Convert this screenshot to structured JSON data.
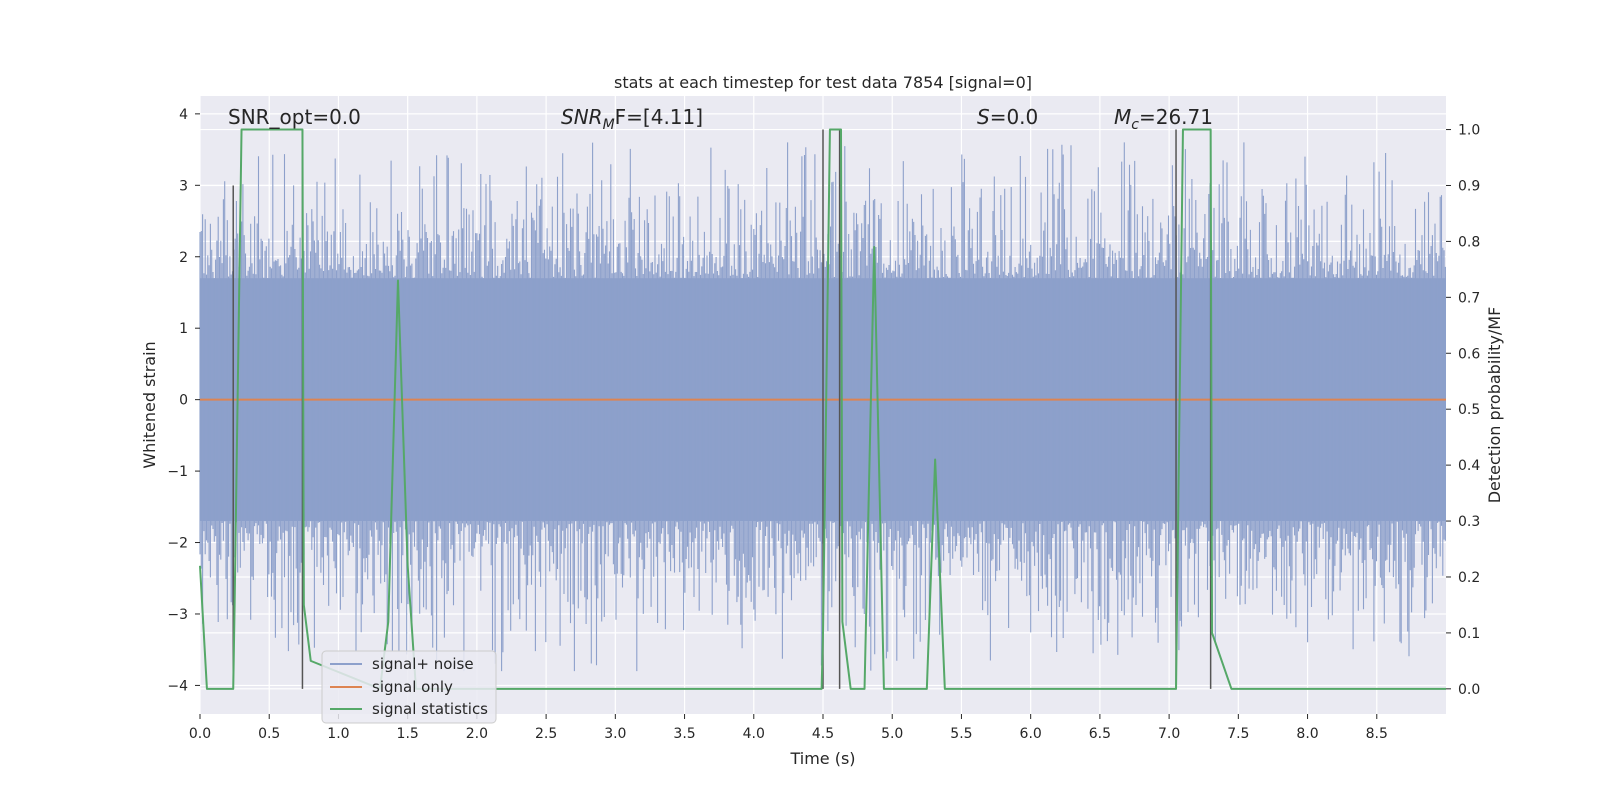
{
  "chart_data": {
    "type": "line",
    "title": "stats at each timestep for test data 7854 [signal=0]",
    "xlabel": "Time (s)",
    "ylabel": "Whitened strain",
    "y2label": "Detection probability/MF",
    "xlim": [
      0.0,
      9.0
    ],
    "ylim": [
      -4.4,
      4.25
    ],
    "y2lim": [
      -0.045,
      1.06
    ],
    "xticks": [
      "0.0",
      "0.5",
      "1.0",
      "1.5",
      "2.0",
      "2.5",
      "3.0",
      "3.5",
      "4.0",
      "4.5",
      "5.0",
      "5.5",
      "6.0",
      "6.5",
      "7.0",
      "7.5",
      "8.0",
      "8.5"
    ],
    "xtick_values": [
      0,
      0.5,
      1,
      1.5,
      2,
      2.5,
      3,
      3.5,
      4,
      4.5,
      5,
      5.5,
      6,
      6.5,
      7,
      7.5,
      8,
      8.5
    ],
    "yticks": [
      "−4",
      "−3",
      "−2",
      "−1",
      "0",
      "1",
      "2",
      "3",
      "4"
    ],
    "ytick_values": [
      -4,
      -3,
      -2,
      -1,
      0,
      1,
      2,
      3,
      4
    ],
    "y2ticks": [
      "0.0",
      "0.1",
      "0.2",
      "0.3",
      "0.4",
      "0.5",
      "0.6",
      "0.7",
      "0.8",
      "0.9",
      "1.0"
    ],
    "y2tick_values": [
      0,
      0.1,
      0.2,
      0.3,
      0.4,
      0.5,
      0.6,
      0.7,
      0.8,
      0.9,
      1.0
    ],
    "grid": true,
    "legend_position": "lower-left",
    "annotations": [
      {
        "id": "snr-opt",
        "text": "SNR_opt=0.0",
        "x": 0.2,
        "y": 4.0
      },
      {
        "id": "snr-mf",
        "base": "SNR",
        "sub": "M",
        "suffix": "F=[4.11]",
        "x": 2.6,
        "y": 4.0
      },
      {
        "id": "s",
        "base": "S",
        "sub": "",
        "suffix": "=0.0",
        "x": 5.6,
        "y": 4.0
      },
      {
        "id": "mc",
        "base": "M",
        "sub": "c",
        "suffix": "=26.71",
        "x": 6.6,
        "y": 4.0
      }
    ],
    "series": [
      {
        "name": "signal+ noise",
        "color": "#8da0cb",
        "axis": "left",
        "kind": "noise",
        "band": [
          -1.7,
          1.7
        ],
        "spike_range": [
          -3.8,
          3.6
        ]
      },
      {
        "name": "signal only",
        "color": "#dd8452",
        "axis": "left",
        "kind": "line",
        "x": [
          0.0,
          9.0
        ],
        "y": [
          0.0,
          0.0
        ]
      },
      {
        "name": "signal statistics",
        "color": "#55a868",
        "axis": "right",
        "kind": "line",
        "x": [
          0.0,
          0.05,
          0.24,
          0.25,
          0.3,
          0.74,
          0.75,
          0.8,
          1.3,
          1.36,
          1.43,
          1.5,
          1.56,
          1.62,
          1.7,
          4.45,
          4.49,
          4.5,
          4.55,
          4.63,
          4.64,
          4.7,
          4.8,
          4.87,
          4.94,
          5.0,
          5.25,
          5.31,
          5.38,
          5.45,
          7.0,
          7.05,
          7.1,
          7.3,
          7.31,
          7.45,
          7.55,
          8.35,
          8.4,
          8.45,
          9.0
        ],
        "y": [
          0.22,
          0.0,
          0.0,
          0.15,
          1.0,
          1.0,
          0.15,
          0.05,
          0.0,
          0.12,
          0.73,
          0.22,
          0.0,
          0.0,
          0.0,
          0.0,
          0.0,
          0.1,
          1.0,
          1.0,
          0.12,
          0.0,
          0.0,
          0.79,
          0.0,
          0.0,
          0.0,
          0.41,
          0.0,
          0.0,
          0.0,
          0.0,
          1.0,
          1.0,
          0.1,
          0.0,
          0.0,
          0.0,
          0.0,
          0.0,
          0.0
        ]
      },
      {
        "name": "detection markers",
        "color": "#555555",
        "axis": "right",
        "kind": "vlines",
        "segments": [
          {
            "x": 0.24,
            "y0": 0.0,
            "y1": 0.9
          },
          {
            "x": 0.74,
            "y0": 0.0,
            "y1": 1.0
          },
          {
            "x": 4.5,
            "y0": 0.0,
            "y1": 1.0
          },
          {
            "x": 4.62,
            "y0": 0.0,
            "y1": 1.0
          },
          {
            "x": 7.05,
            "y0": 0.0,
            "y1": 1.0
          },
          {
            "x": 7.3,
            "y0": 0.0,
            "y1": 0.9
          }
        ]
      }
    ],
    "colors": {
      "plot_background": "#eaeaf2",
      "grid": "#ffffff",
      "text": "#262626",
      "legend_background": "#eaeaf2",
      "legend_border": "#cccccc"
    }
  }
}
